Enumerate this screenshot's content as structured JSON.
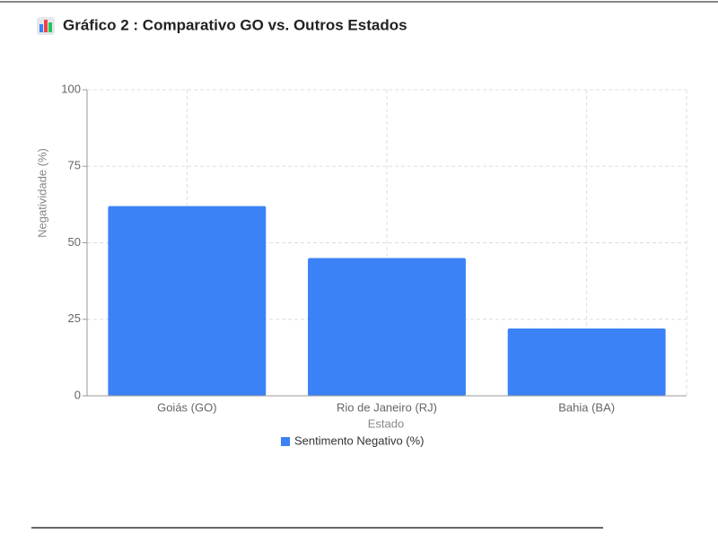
{
  "chart_data": {
    "type": "bar",
    "title": "Gráfico 2 : Comparativo GO vs. Outros Estados",
    "categories": [
      "Goiás (GO)",
      "Rio de Janeiro (RJ)",
      "Bahia (BA)"
    ],
    "series": [
      {
        "name": "Sentimento Negativo (%)",
        "color": "#3b82f6",
        "values": [
          62,
          45,
          22
        ]
      }
    ],
    "x_label": "Estado",
    "y_label": "Negatividade (%)",
    "ylim": [
      0,
      100
    ],
    "yticks": [
      0,
      25,
      50,
      75,
      100
    ],
    "grid": true
  }
}
